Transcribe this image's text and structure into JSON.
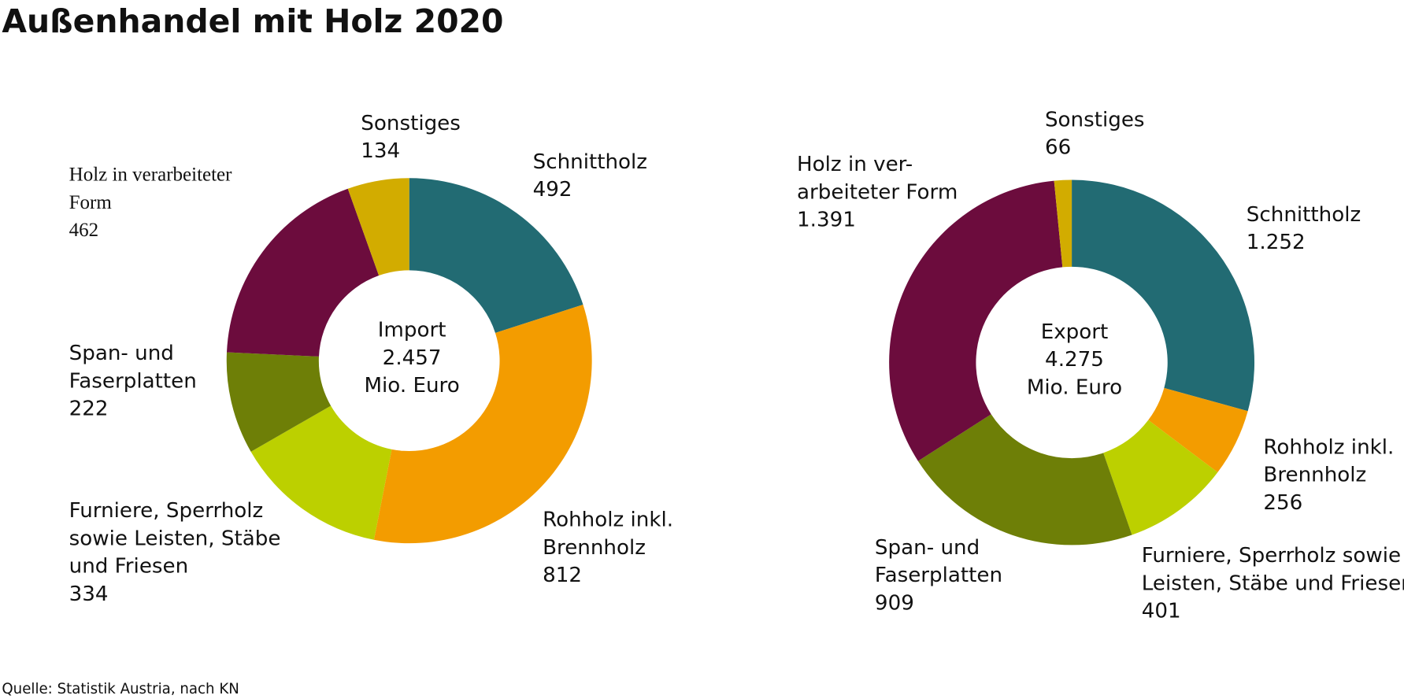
{
  "title": "Außenhandel mit Holz 2020",
  "source": "Quelle: Statistik Austria, nach KN",
  "chart_data": [
    {
      "type": "donut",
      "center_label": "Import",
      "total": 2457,
      "total_label": "2.457",
      "unit": "Mio. Euro",
      "categories": [
        "Schnittholz",
        "Rohholz inkl.\nBrennholz",
        "Furniere, Sperrholz\nsowie Leisten, Stäbe\nund Friesen",
        "Span- und\nFaserplatten",
        "Holz in verarbeiteter\nForm",
        "Sonstiges"
      ],
      "values": [
        492,
        812,
        334,
        222,
        462,
        134
      ],
      "colors": [
        "#226b73",
        "#f39c00",
        "#bcd000",
        "#6e7f07",
        "#6c0c3d",
        "#d2ac00"
      ]
    },
    {
      "type": "donut",
      "center_label": "Export",
      "total": 4275,
      "total_label": "4.275",
      "unit": "Mio. Euro",
      "categories": [
        "Schnittholz",
        "Rohholz inkl.\nBrennholz",
        "Furniere, Sperrholz sowie\nLeisten, Stäbe und Friesen",
        "Span- und\nFaserplatten",
        "Holz in ver-\narbeiteter Form",
        "Sonstiges"
      ],
      "values": [
        1252,
        256,
        401,
        909,
        1391,
        66
      ],
      "value_labels": [
        "1.252",
        "256",
        "401",
        "909",
        "1.391",
        "66"
      ],
      "colors": [
        "#226b73",
        "#f39c00",
        "#bcd000",
        "#6e7f07",
        "#6c0c3d",
        "#d2ac00"
      ]
    }
  ]
}
